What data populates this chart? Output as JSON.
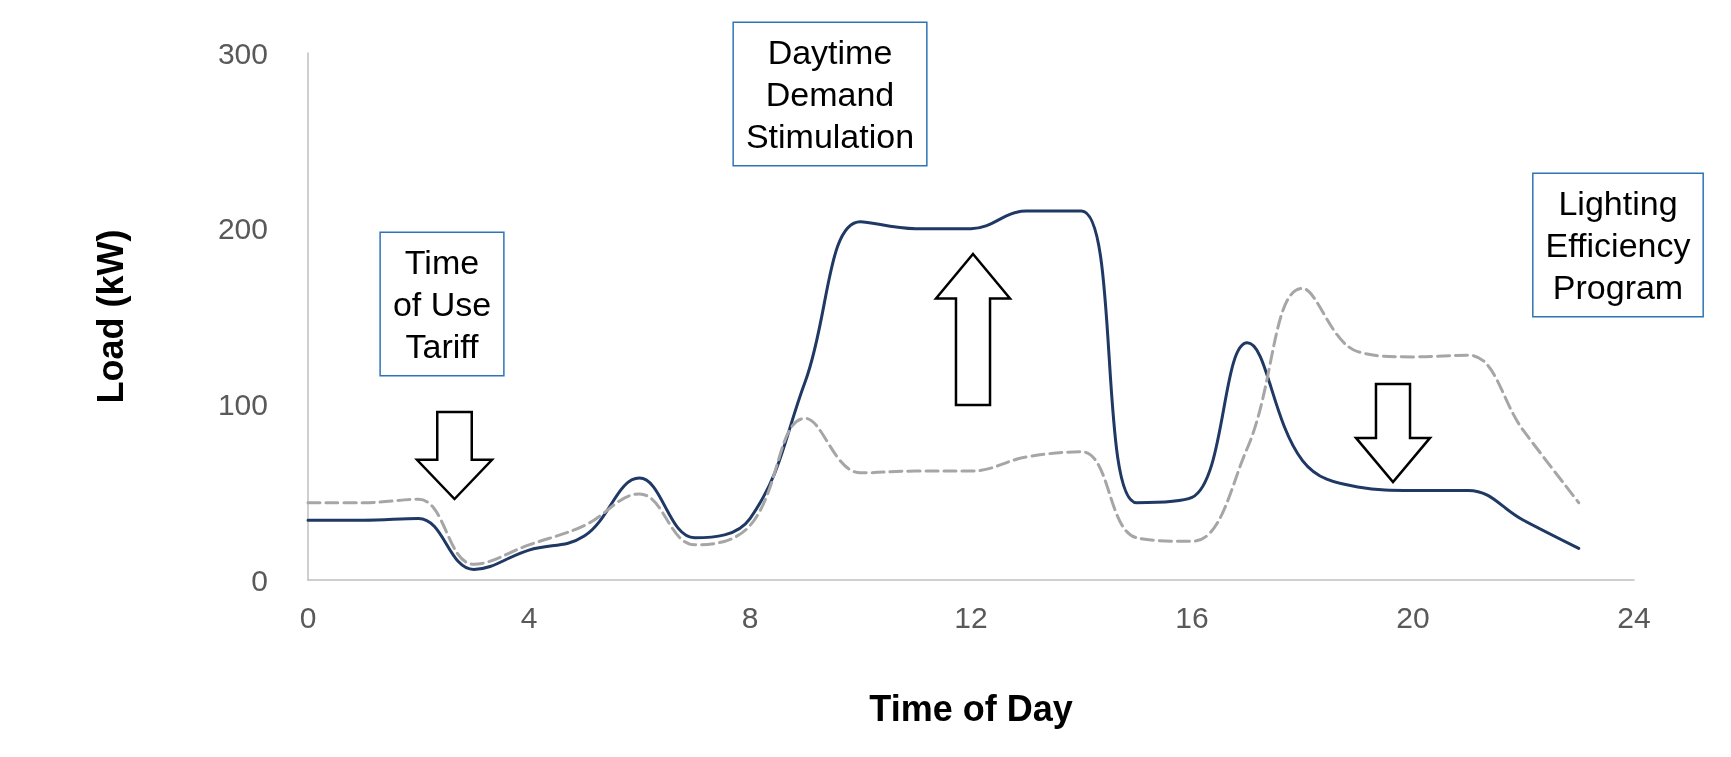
{
  "chart_data": {
    "type": "line",
    "xlabel": "Time of Day",
    "ylabel": "Load (kW)",
    "x": [
      0,
      1,
      2,
      3,
      4,
      5,
      6,
      7,
      8,
      9,
      10,
      11,
      12,
      13,
      14,
      15,
      16,
      17,
      18,
      19,
      20,
      21,
      22,
      23
    ],
    "series": [
      {
        "color": "#1f3864",
        "values": [
          34,
          34,
          35,
          6,
          17,
          25,
          58,
          24,
          35,
          113,
          204,
          200,
          200,
          210,
          210,
          44,
          47,
          135,
          68,
          53,
          51,
          51,
          34,
          18
        ]
      },
      {
        "color": "#a6a6a6",
        "line_style": "dashed",
        "values": [
          44,
          44,
          46,
          9,
          20,
          31,
          49,
          20,
          31,
          92,
          61,
          62,
          62,
          70,
          73,
          24,
          22,
          75,
          166,
          130,
          127,
          128,
          85,
          44
        ]
      }
    ],
    "xlim": [
      0,
      24
    ],
    "xticks": [
      0,
      4,
      8,
      12,
      16,
      20,
      24
    ],
    "ylim": [
      0,
      300
    ],
    "yticks": [
      0,
      100,
      200,
      300
    ],
    "grid": false,
    "marker": "none",
    "line_style": "solid",
    "annotations": [
      "Time\nof Use\nTariff",
      "Daytime\nDemand\nStimulation",
      "Lighting\nEfficiency\nProgram"
    ]
  }
}
